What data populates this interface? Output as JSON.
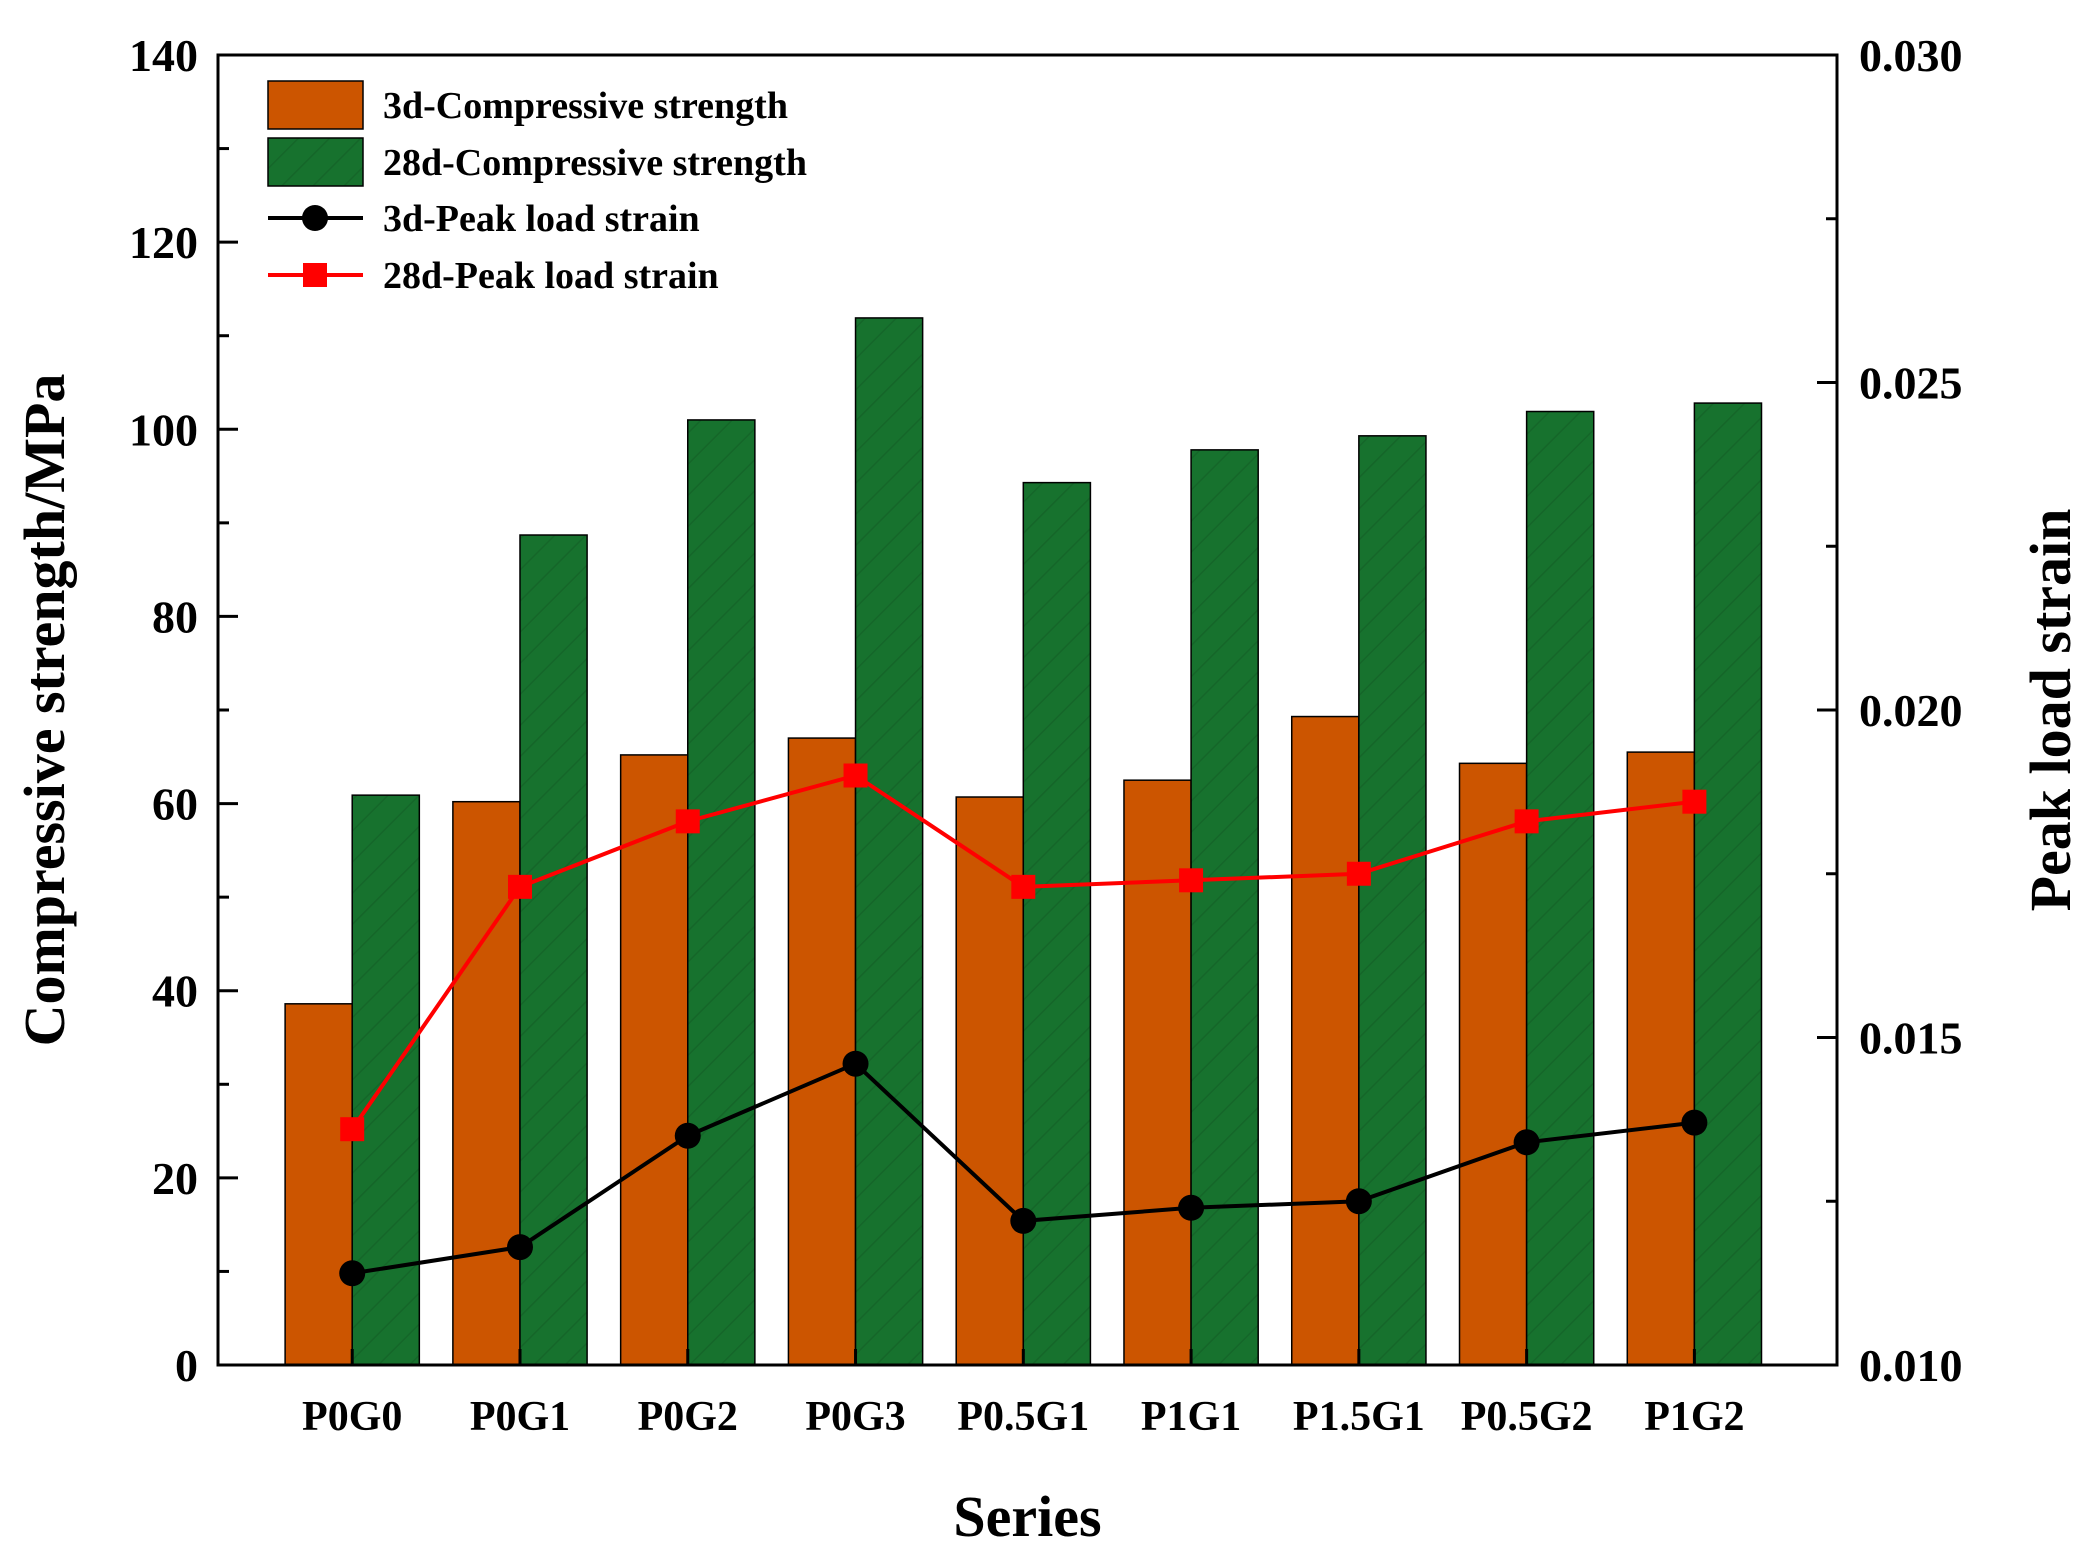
{
  "chart_data": {
    "type": "bar+line",
    "categories": [
      "P0G0",
      "P0G1",
      "P0G2",
      "P0G3",
      "P0.5G1",
      "P1G1",
      "P1.5G1",
      "P0.5G2",
      "P1G2"
    ],
    "bar_series": [
      {
        "name": "3d-Compressive strength",
        "color": "#cc5500",
        "values": [
          38.6,
          60.2,
          65.2,
          67.0,
          60.7,
          62.5,
          69.3,
          64.3,
          65.5
        ]
      },
      {
        "name": "28d-Compressive strength",
        "color": "#17722e",
        "values": [
          60.9,
          88.7,
          101.0,
          111.9,
          94.3,
          97.8,
          99.3,
          101.9,
          102.8
        ]
      }
    ],
    "line_series": [
      {
        "name": "3d-Peak load strain",
        "color": "#000000",
        "marker": "circle",
        "values": [
          0.0114,
          0.0118,
          0.0135,
          0.0146,
          0.0122,
          0.0124,
          0.0125,
          0.0134,
          0.0137
        ]
      },
      {
        "name": "28d-Peak load strain",
        "color": "#ff0000",
        "marker": "square",
        "values": [
          0.0136,
          0.0173,
          0.0183,
          0.019,
          0.0173,
          0.0174,
          0.0175,
          0.0183,
          0.0186
        ]
      }
    ],
    "xlabel": "Series",
    "ylabel_left": "Compressive strength/MPa",
    "ylabel_right": "Peak load strain",
    "ylim_left": [
      0,
      140
    ],
    "ylim_right": [
      0.01,
      0.03
    ],
    "left_ticks": [
      "0",
      "20",
      "40",
      "60",
      "80",
      "100",
      "120",
      "140"
    ],
    "right_ticks": [
      "0.010",
      "0.015",
      "0.020",
      "0.025",
      "0.030"
    ],
    "legend_position": "top-left",
    "grid": false
  }
}
